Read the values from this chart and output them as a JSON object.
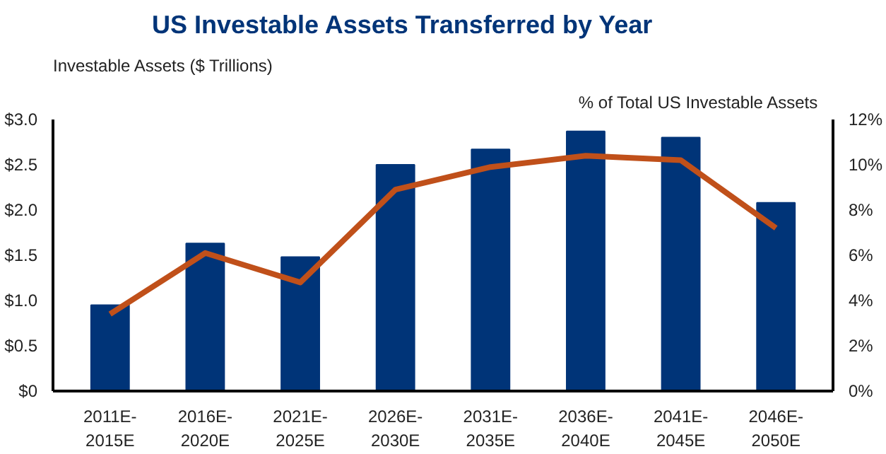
{
  "chart_data": {
    "type": "bar",
    "title": "US Investable Assets Transferred by Year",
    "ylabel": "Investable  Assets  ($ Trillions)",
    "y2label": "% of Total  US  Investable  Assets",
    "categories": [
      "2011E-\n2015E",
      "2016E-\n2020E",
      "2021E-\n2025E",
      "2026E-\n2030E",
      "2031E-\n2035E",
      "2036E-\n2040E",
      "2041E-\n2045E",
      "2046E-\n2050E"
    ],
    "series": [
      {
        "color": "#003478",
        "values": [
          0.95,
          1.63,
          1.48,
          2.5,
          2.67,
          2.87,
          2.8,
          2.08
        ]
      },
      {
        "type": "line",
        "axis": "y2",
        "color": "#c0501a",
        "values": [
          3.4,
          6.1,
          4.8,
          8.9,
          9.9,
          10.4,
          10.2,
          7.2
        ]
      }
    ],
    "ylim": [
      0,
      3.0
    ],
    "yticks": [
      {
        "value": 0,
        "label": "$0"
      },
      {
        "value": 0.5,
        "label": "$0.5"
      },
      {
        "value": 1.0,
        "label": "$1.0"
      },
      {
        "value": 1.5,
        "label": "$1.5"
      },
      {
        "value": 2.0,
        "label": "$2.0"
      },
      {
        "value": 2.5,
        "label": "$2.5"
      },
      {
        "value": 3.0,
        "label": "$3.0"
      }
    ],
    "y2lim": [
      0,
      12
    ],
    "y2ticks": [
      {
        "value": 0,
        "label": "0%"
      },
      {
        "value": 2,
        "label": "2%"
      },
      {
        "value": 4,
        "label": "4%"
      },
      {
        "value": 6,
        "label": "6%"
      },
      {
        "value": 8,
        "label": "8%"
      },
      {
        "value": 10,
        "label": "10%"
      },
      {
        "value": 12,
        "label": "12%"
      }
    ],
    "grid": false,
    "marker": "none",
    "line_style": "solid"
  }
}
